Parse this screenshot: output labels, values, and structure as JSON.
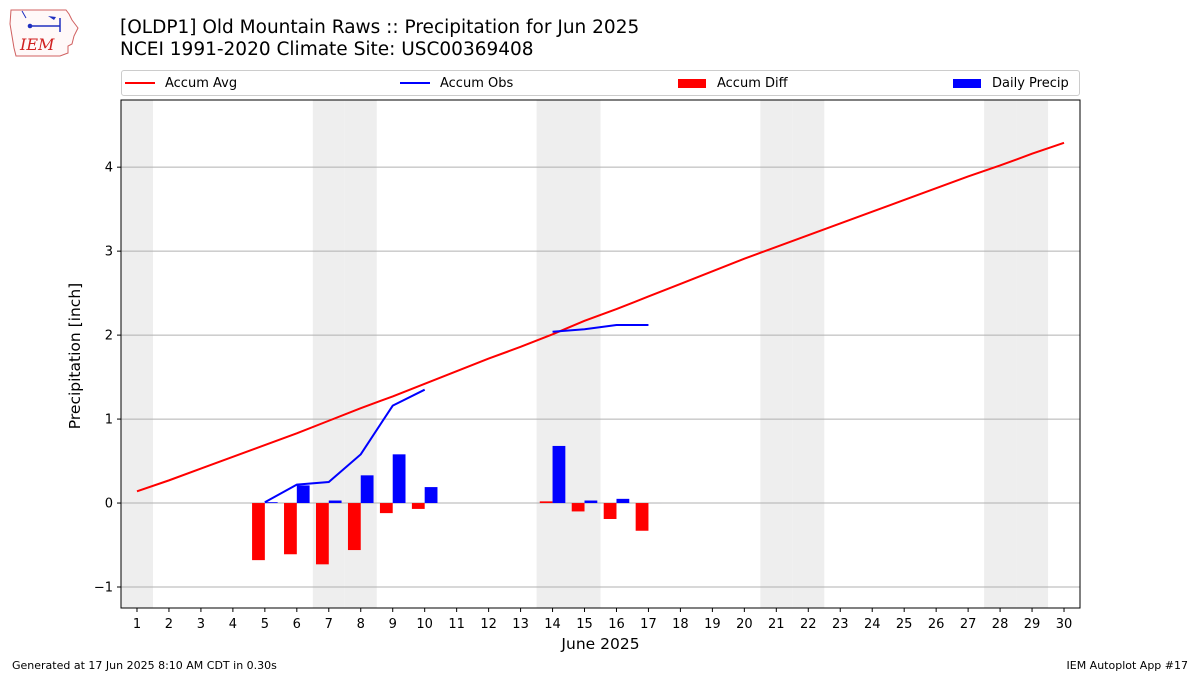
{
  "header": {
    "title_line1": "[OLDP1] Old Mountain Raws :: Precipitation for Jun 2025",
    "title_line2": "NCEI 1991-2020 Climate Site: USC00369408",
    "logo_text": "IEM"
  },
  "legend": {
    "items": [
      {
        "label": "Accum Avg",
        "kind": "line",
        "color": "#ff0000"
      },
      {
        "label": "Accum Obs",
        "kind": "line",
        "color": "#0000ff"
      },
      {
        "label": "Accum Diff",
        "kind": "patch",
        "color": "#ff0000"
      },
      {
        "label": "Daily Precip",
        "kind": "patch",
        "color": "#0000ff"
      }
    ]
  },
  "footer": {
    "left": "Generated at 17 Jun 2025 8:10 AM CDT in 0.30s",
    "right": "IEM Autoplot App #17"
  },
  "chart_data": {
    "type": "bar",
    "title": "[OLDP1] Old Mountain Raws :: Precipitation for Jun 2025",
    "subtitle": "NCEI 1991-2020 Climate Site: USC00369408",
    "xlabel": "June 2025",
    "ylabel": "Precipitation [inch]",
    "xlim": [
      0.5,
      30.5
    ],
    "ylim": [
      -1.25,
      4.8
    ],
    "x_ticks": [
      1,
      2,
      3,
      4,
      5,
      6,
      7,
      8,
      9,
      10,
      11,
      12,
      13,
      14,
      15,
      16,
      17,
      18,
      19,
      20,
      21,
      22,
      23,
      24,
      25,
      26,
      27,
      28,
      29,
      30
    ],
    "y_ticks": [
      -1,
      0,
      1,
      2,
      3,
      4
    ],
    "grid": "horizontal",
    "legend_position": "top, above plot",
    "weekend_shading_days": [
      1,
      7,
      8,
      14,
      15,
      21,
      22,
      28,
      29
    ],
    "colors": {
      "avg": "#ff0000",
      "obs": "#0000ff",
      "diff": "#ff0000",
      "daily": "#0000ff",
      "shade": "#eeeeee"
    },
    "series": [
      {
        "name": "Accum Avg",
        "kind": "line",
        "x": [
          1,
          2,
          3,
          4,
          5,
          6,
          7,
          8,
          9,
          10,
          11,
          12,
          13,
          14,
          15,
          16,
          17,
          18,
          19,
          20,
          21,
          22,
          23,
          24,
          25,
          26,
          27,
          28,
          29,
          30
        ],
        "values": [
          0.14,
          0.27,
          0.41,
          0.55,
          0.69,
          0.83,
          0.98,
          1.13,
          1.27,
          1.42,
          1.57,
          1.72,
          1.86,
          2.01,
          2.17,
          2.31,
          2.46,
          2.61,
          2.76,
          2.91,
          3.05,
          3.19,
          3.33,
          3.47,
          3.61,
          3.75,
          3.89,
          4.02,
          4.16,
          4.29
        ]
      },
      {
        "name": "Accum Obs",
        "kind": "line",
        "segments": [
          {
            "x": [
              5,
              6,
              7,
              8,
              9,
              10
            ],
            "values": [
              0.01,
              0.22,
              0.25,
              0.58,
              1.16,
              1.35
            ]
          },
          {
            "x": [
              14,
              15,
              16,
              17
            ],
            "values": [
              2.04,
              2.07,
              2.12,
              2.12
            ]
          }
        ]
      },
      {
        "name": "Accum Diff",
        "kind": "bar",
        "x": [
          5,
          6,
          7,
          8,
          9,
          10,
          14,
          15,
          16,
          17
        ],
        "values": [
          -0.68,
          -0.61,
          -0.73,
          -0.56,
          -0.12,
          -0.07,
          0.02,
          -0.1,
          -0.19,
          -0.33
        ]
      },
      {
        "name": "Daily Precip",
        "kind": "bar",
        "x": [
          5,
          6,
          7,
          8,
          9,
          10,
          14,
          15,
          16,
          17
        ],
        "values": [
          0.01,
          0.21,
          0.03,
          0.33,
          0.58,
          0.19,
          0.68,
          0.03,
          0.05,
          0.0
        ]
      }
    ]
  }
}
